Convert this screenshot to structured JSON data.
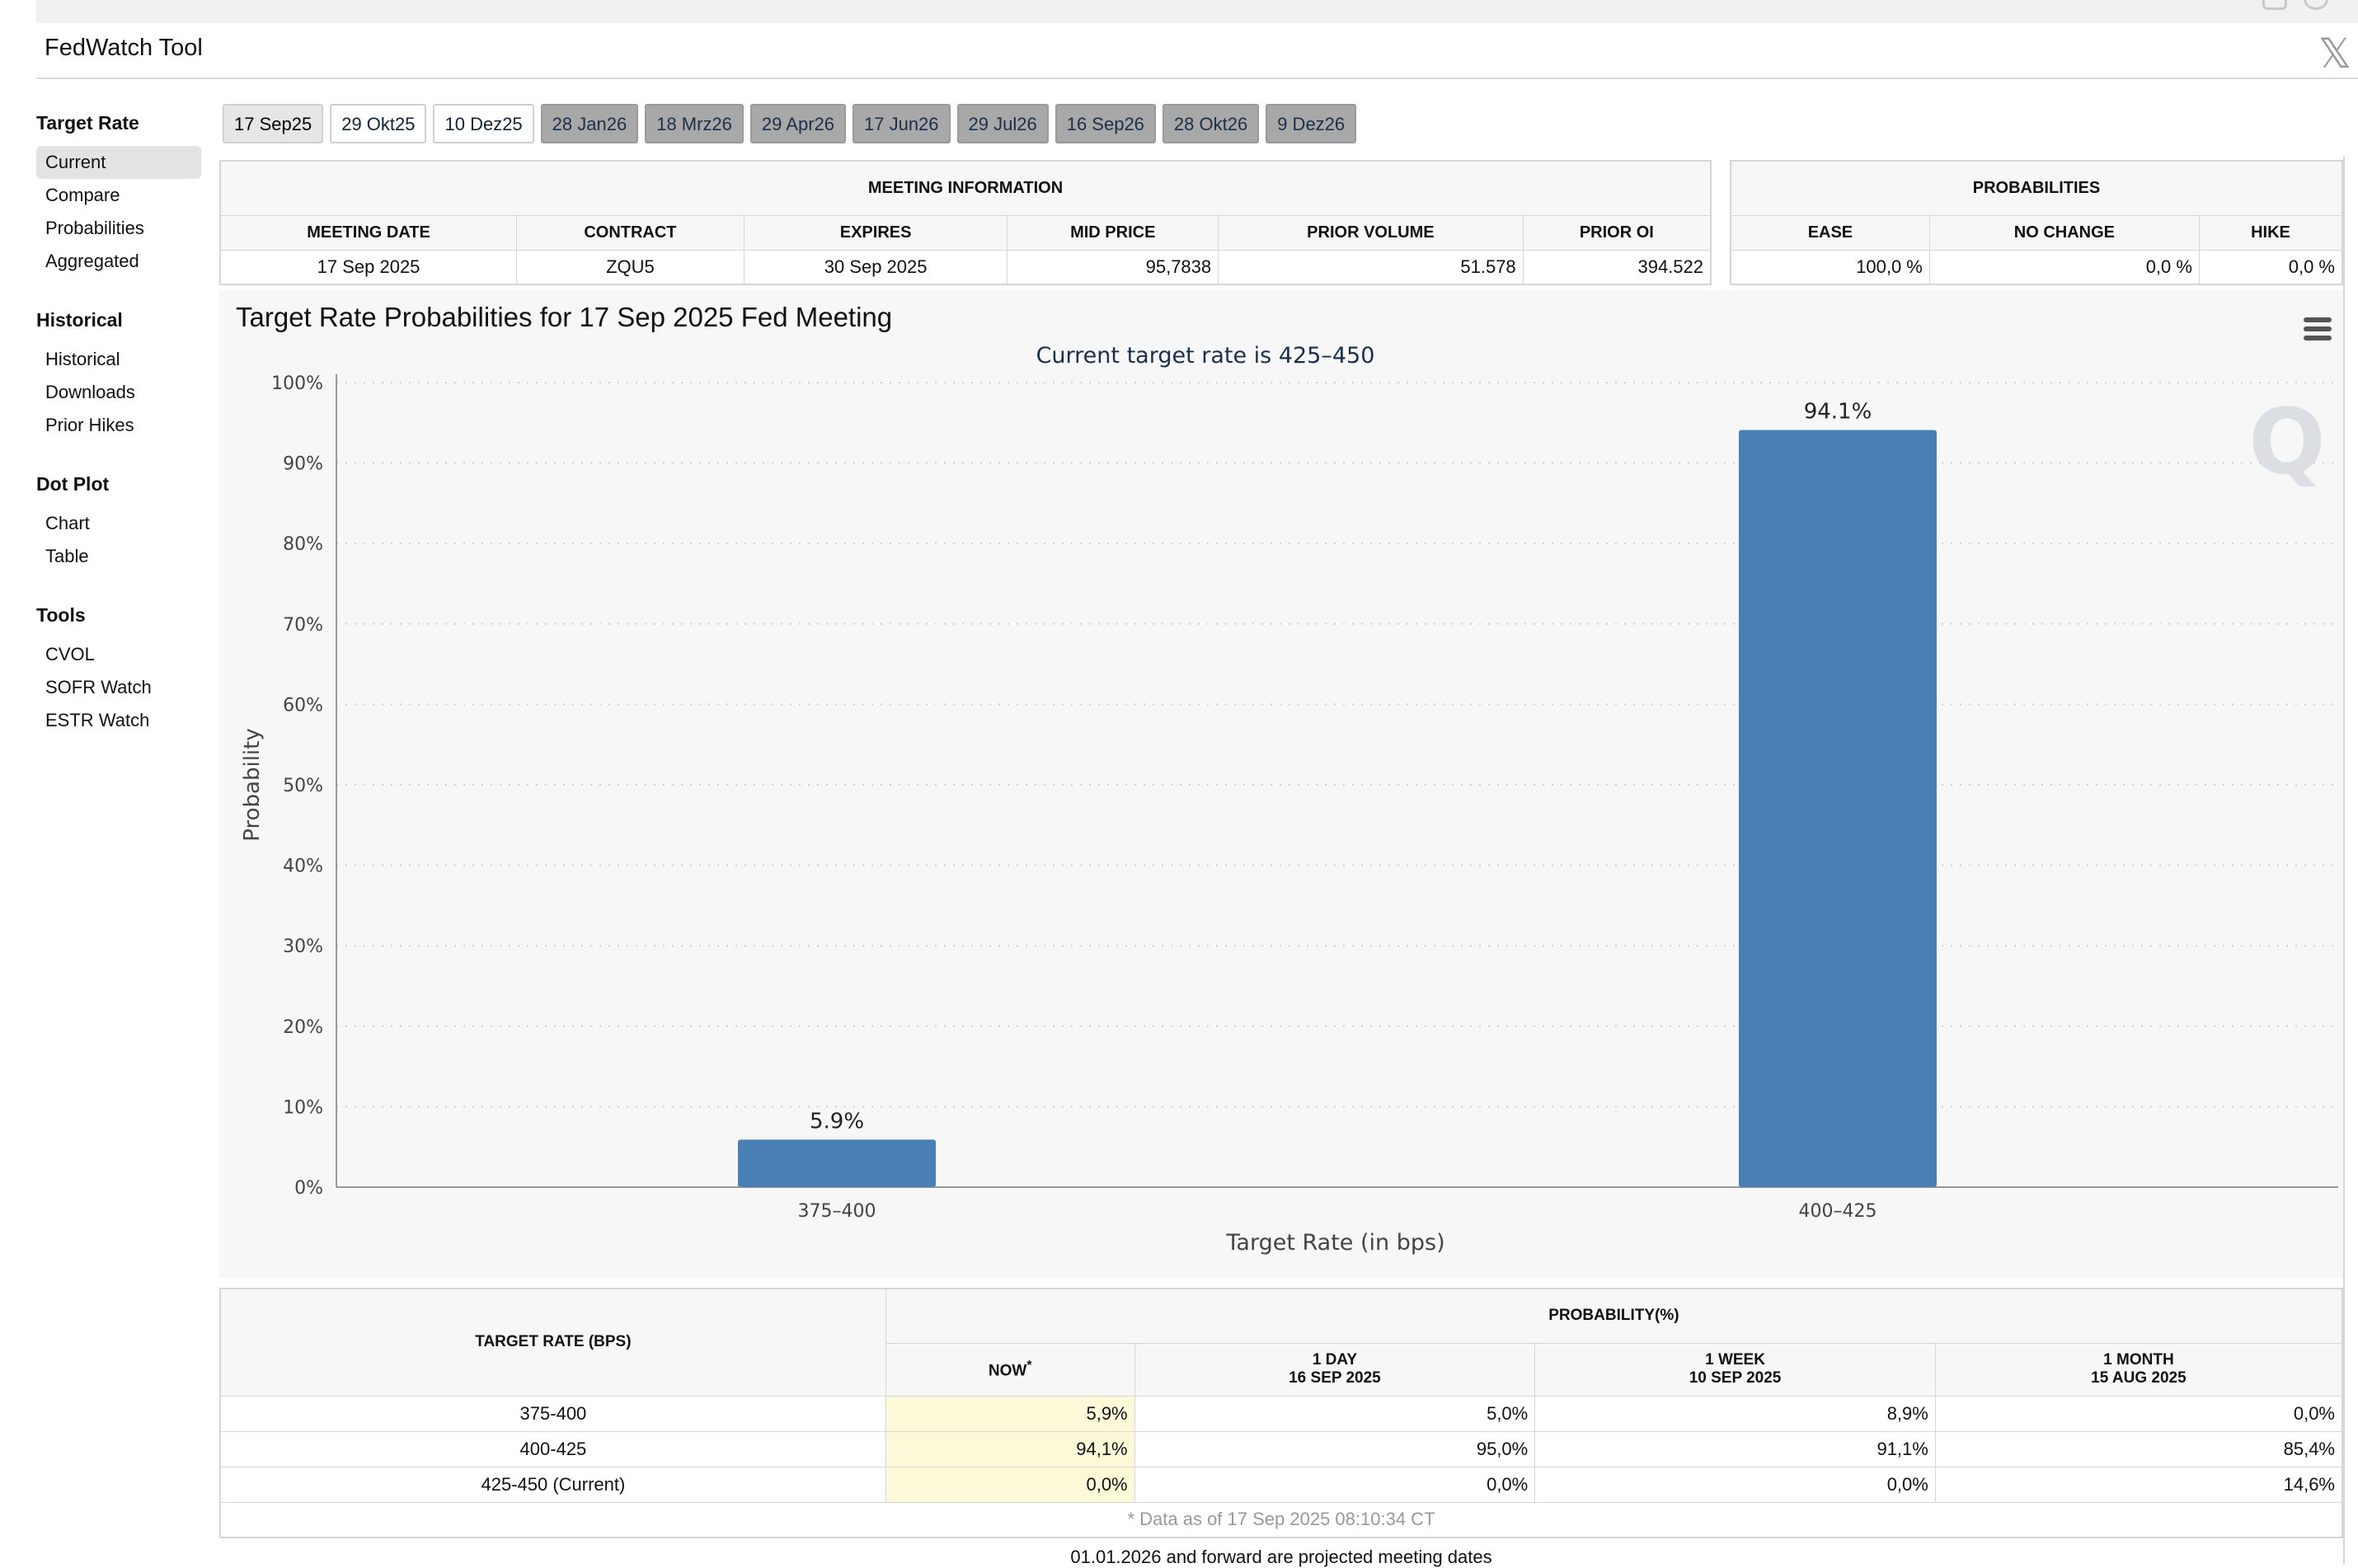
{
  "window": {
    "title": "FedWatch Tool"
  },
  "sidebar": {
    "sections": [
      {
        "heading": "Target Rate",
        "items": [
          "Current",
          "Compare",
          "Probabilities",
          "Aggregated"
        ]
      },
      {
        "heading": "Historical",
        "items": [
          "Historical",
          "Downloads",
          "Prior Hikes"
        ]
      },
      {
        "heading": "Dot Plot",
        "items": [
          "Chart",
          "Table"
        ]
      },
      {
        "heading": "Tools",
        "items": [
          "CVOL",
          "SOFR Watch",
          "ESTR Watch"
        ]
      }
    ],
    "active_item": "Current"
  },
  "tabs": [
    {
      "label": "17 Sep25",
      "state": "active"
    },
    {
      "label": "29 Okt25",
      "state": "normal"
    },
    {
      "label": "10 Dez25",
      "state": "normal"
    },
    {
      "label": "28 Jan26",
      "state": "grey"
    },
    {
      "label": "18 Mrz26",
      "state": "grey"
    },
    {
      "label": "29 Apr26",
      "state": "grey"
    },
    {
      "label": "17 Jun26",
      "state": "grey"
    },
    {
      "label": "29 Jul26",
      "state": "grey"
    },
    {
      "label": "16 Sep26",
      "state": "grey"
    },
    {
      "label": "28 Okt26",
      "state": "grey"
    },
    {
      "label": "9 Dez26",
      "state": "grey"
    }
  ],
  "meeting_info": {
    "title": "MEETING INFORMATION",
    "headers": [
      "MEETING DATE",
      "CONTRACT",
      "EXPIRES",
      "MID PRICE",
      "PRIOR VOLUME",
      "PRIOR OI"
    ],
    "values": [
      "17 Sep 2025",
      "ZQU5",
      "30 Sep 2025",
      "95,7838",
      "51.578",
      "394.522"
    ]
  },
  "probabilities": {
    "title": "PROBABILITIES",
    "headers": [
      "EASE",
      "NO CHANGE",
      "HIKE"
    ],
    "values": [
      "100,0 %",
      "0,0 %",
      "0,0 %"
    ]
  },
  "chart_data": {
    "type": "bar",
    "title": "Target Rate Probabilities for 17 Sep 2025 Fed Meeting",
    "subtitle": "Current target rate is 425–450",
    "xlabel": "Target Rate (in bps)",
    "ylabel": "Probability",
    "categories": [
      "375–400",
      "400–425"
    ],
    "values": [
      5.9,
      94.1
    ],
    "data_labels": [
      "5.9%",
      "94.1%"
    ],
    "ylim": [
      0,
      100
    ],
    "yticks": [
      "0%",
      "10%",
      "20%",
      "30%",
      "40%",
      "50%",
      "60%",
      "70%",
      "80%",
      "90%",
      "100%"
    ],
    "bar_color": "#4a7fb5",
    "grid": true,
    "watermark": "Q"
  },
  "bottom_table": {
    "rate_header": "TARGET RATE (BPS)",
    "prob_header": "PROBABILITY(%)",
    "cols": [
      {
        "l1": "NOW",
        "l2": "",
        "star": "*"
      },
      {
        "l1": "1 DAY",
        "l2": "16 SEP 2025"
      },
      {
        "l1": "1 WEEK",
        "l2": "10 SEP 2025"
      },
      {
        "l1": "1 MONTH",
        "l2": "15 AUG 2025"
      }
    ],
    "rows": [
      {
        "rate": "375-400",
        "vals": [
          "5,9%",
          "5,0%",
          "8,9%",
          "0,0%"
        ]
      },
      {
        "rate": "400-425",
        "vals": [
          "94,1%",
          "95,0%",
          "91,1%",
          "85,4%"
        ]
      },
      {
        "rate": "425-450 (Current)",
        "vals": [
          "0,0%",
          "0,0%",
          "0,0%",
          "14,6%"
        ]
      }
    ],
    "footnote": "* Data as of 17 Sep 2025 08:10:34 CT"
  },
  "footer_note": "01.01.2026 and forward are projected meeting dates"
}
